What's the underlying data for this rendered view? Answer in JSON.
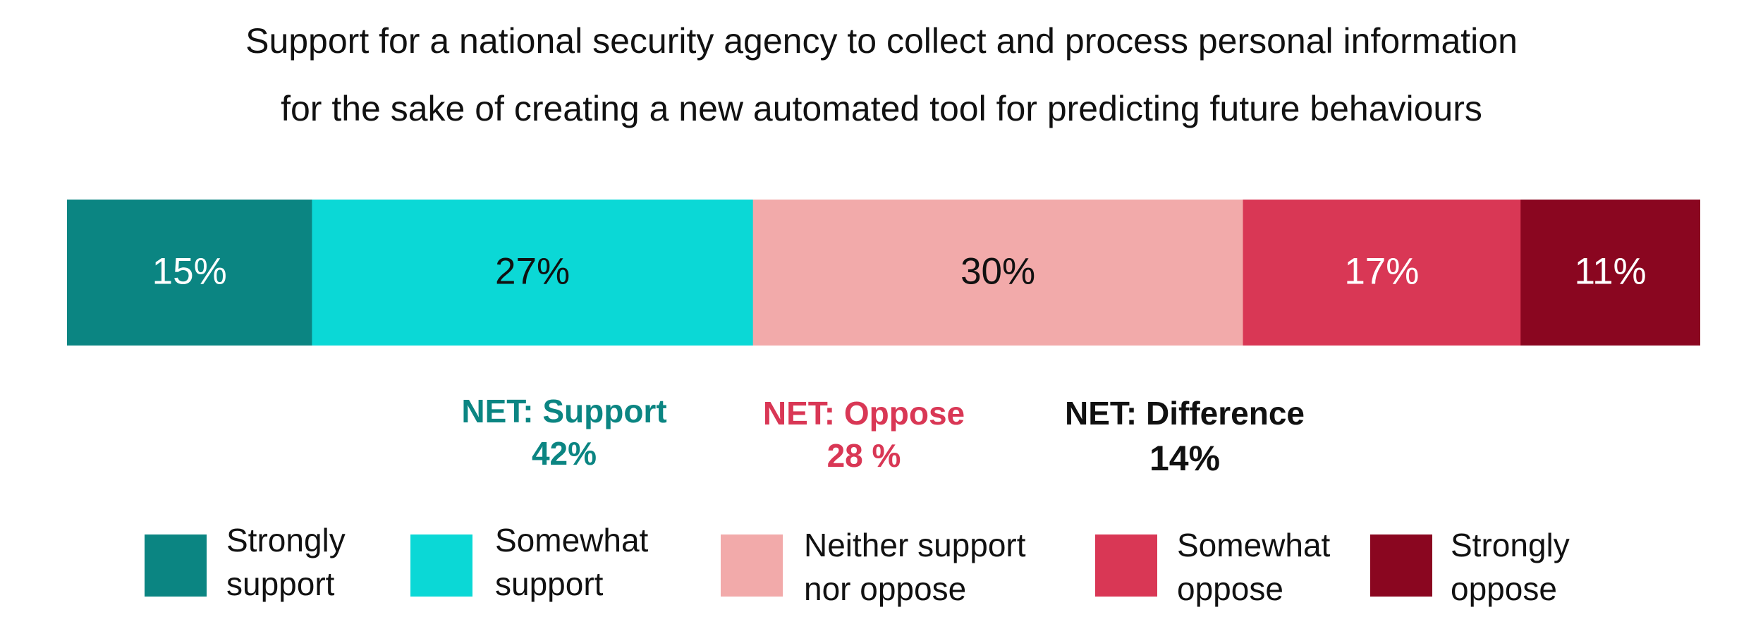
{
  "chart_data": {
    "type": "bar",
    "orientation": "horizontal",
    "stacked": true,
    "title_lines": [
      "Support for a national security agency to collect and process personal information",
      "for the sake of creating a new automated tool for predicting future behaviours"
    ],
    "unit": "%",
    "series": [
      {
        "name": "Strongly support",
        "legend_lines": [
          "Strongly",
          "support"
        ],
        "value": 15,
        "label": "15%",
        "color": "#0b8582",
        "label_color": "#ffffff"
      },
      {
        "name": "Somewhat support",
        "legend_lines": [
          "Somewhat",
          "support"
        ],
        "value": 27,
        "label": "27%",
        "color": "#0bd8d6",
        "label_color": "#111111"
      },
      {
        "name": "Neither support nor oppose",
        "legend_lines": [
          "Neither support",
          "nor oppose"
        ],
        "value": 30,
        "label": "30%",
        "color": "#f2aaaa",
        "label_color": "#111111"
      },
      {
        "name": "Somewhat oppose",
        "legend_lines": [
          "Somewhat",
          "oppose"
        ],
        "value": 17,
        "label": "17%",
        "color": "#d93755",
        "label_color": "#ffffff"
      },
      {
        "name": "Strongly oppose",
        "legend_lines": [
          "Strongly",
          "oppose"
        ],
        "value": 11,
        "label": "11%",
        "color": "#8a0620",
        "label_color": "#ffffff"
      }
    ],
    "net": {
      "support": {
        "label": "NET: Support",
        "value_text": "42%",
        "color": "#0b8582"
      },
      "oppose": {
        "label": "NET: Oppose",
        "value_text": "28 %",
        "color": "#d93755"
      },
      "difference": {
        "label": "NET: Difference",
        "value_text": "14%",
        "color": "#111111"
      }
    },
    "legend_position": "bottom"
  }
}
